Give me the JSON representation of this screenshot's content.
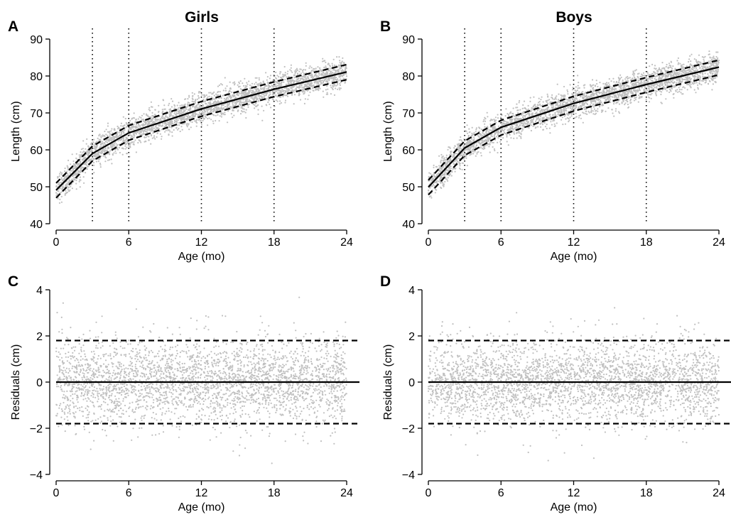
{
  "figure": {
    "panels": [
      {
        "letter": "A",
        "title": "Girls"
      },
      {
        "letter": "B",
        "title": "Boys"
      },
      {
        "letter": "C",
        "title": ""
      },
      {
        "letter": "D",
        "title": ""
      }
    ]
  },
  "chart_data": [
    {
      "panel": "A",
      "type": "scatter",
      "title": "Girls",
      "xlabel": "Age (mo)",
      "ylabel": "Length (cm)",
      "xlim": [
        0,
        24
      ],
      "ylim": [
        40,
        90
      ],
      "xticks": [
        0,
        6,
        12,
        18,
        24
      ],
      "yticks": [
        40,
        50,
        60,
        70,
        80,
        90
      ],
      "grid": false,
      "knots": [
        3,
        6,
        12,
        18
      ],
      "scatter_cloud": {
        "color": "#c0c0c0",
        "center": "fit",
        "sd": 2.0
      },
      "series": [
        {
          "style": "solid",
          "x": [
            0,
            3,
            6,
            12,
            18,
            24
          ],
          "values": [
            49.1,
            59.0,
            64.6,
            71.1,
            76.4,
            81.1
          ]
        },
        {
          "style": "dashed",
          "x": [
            0,
            3,
            6,
            12,
            18,
            24
          ],
          "values": [
            51.0,
            61.0,
            66.6,
            73.1,
            78.4,
            83.1
          ]
        },
        {
          "style": "dashed",
          "x": [
            0,
            3,
            6,
            12,
            18,
            24
          ],
          "values": [
            47.0,
            57.0,
            62.6,
            69.1,
            74.4,
            79.0
          ]
        }
      ]
    },
    {
      "panel": "B",
      "type": "scatter",
      "title": "Boys",
      "xlabel": "Age (mo)",
      "ylabel": "Length (cm)",
      "xlim": [
        0,
        24
      ],
      "ylim": [
        40,
        90
      ],
      "xticks": [
        0,
        6,
        12,
        18,
        24
      ],
      "yticks": [
        40,
        50,
        60,
        70,
        80,
        90
      ],
      "grid": false,
      "knots": [
        3,
        6,
        12,
        18
      ],
      "scatter_cloud": {
        "color": "#c0c0c0",
        "center": "fit",
        "sd": 2.0
      },
      "series": [
        {
          "style": "solid",
          "x": [
            0,
            3,
            6,
            12,
            18,
            24
          ],
          "values": [
            49.9,
            60.5,
            66.1,
            72.6,
            77.7,
            82.4
          ]
        },
        {
          "style": "dashed",
          "x": [
            0,
            3,
            6,
            12,
            18,
            24
          ],
          "values": [
            51.8,
            62.4,
            68.0,
            74.5,
            79.6,
            84.3
          ]
        },
        {
          "style": "dashed",
          "x": [
            0,
            3,
            6,
            12,
            18,
            24
          ],
          "values": [
            47.8,
            58.5,
            64.0,
            70.5,
            75.6,
            80.3
          ]
        }
      ]
    },
    {
      "panel": "C",
      "type": "scatter",
      "title": "",
      "xlabel": "Age (mo)",
      "ylabel": "Residuals (cm)",
      "xlim": [
        0,
        24
      ],
      "ylim": [
        -4,
        4
      ],
      "xticks": [
        0,
        6,
        12,
        18,
        24
      ],
      "yticks": [
        -4,
        -2,
        0,
        2,
        4
      ],
      "grid": false,
      "knots": [],
      "scatter_cloud": {
        "color": "#c0c0c0",
        "center": "zero",
        "sd": 0.9
      },
      "series": [
        {
          "style": "solid",
          "x": [
            0,
            24
          ],
          "values": [
            0,
            0
          ]
        },
        {
          "style": "dashed",
          "x": [
            0,
            24
          ],
          "values": [
            1.8,
            1.8
          ]
        },
        {
          "style": "dashed",
          "x": [
            0,
            24
          ],
          "values": [
            -1.8,
            -1.8
          ]
        }
      ]
    },
    {
      "panel": "D",
      "type": "scatter",
      "title": "",
      "xlabel": "Age (mo)",
      "ylabel": "Residuals (cm)",
      "xlim": [
        0,
        24
      ],
      "ylim": [
        -4,
        4
      ],
      "xticks": [
        0,
        6,
        12,
        18,
        24
      ],
      "yticks": [
        -4,
        -2,
        0,
        2,
        4
      ],
      "grid": false,
      "knots": [],
      "scatter_cloud": {
        "color": "#c0c0c0",
        "center": "zero",
        "sd": 0.9
      },
      "series": [
        {
          "style": "solid",
          "x": [
            0,
            24
          ],
          "values": [
            0,
            0
          ]
        },
        {
          "style": "dashed",
          "x": [
            0,
            24
          ],
          "values": [
            1.8,
            1.8
          ]
        },
        {
          "style": "dashed",
          "x": [
            0,
            24
          ],
          "values": [
            -1.8,
            -1.8
          ]
        }
      ]
    }
  ]
}
